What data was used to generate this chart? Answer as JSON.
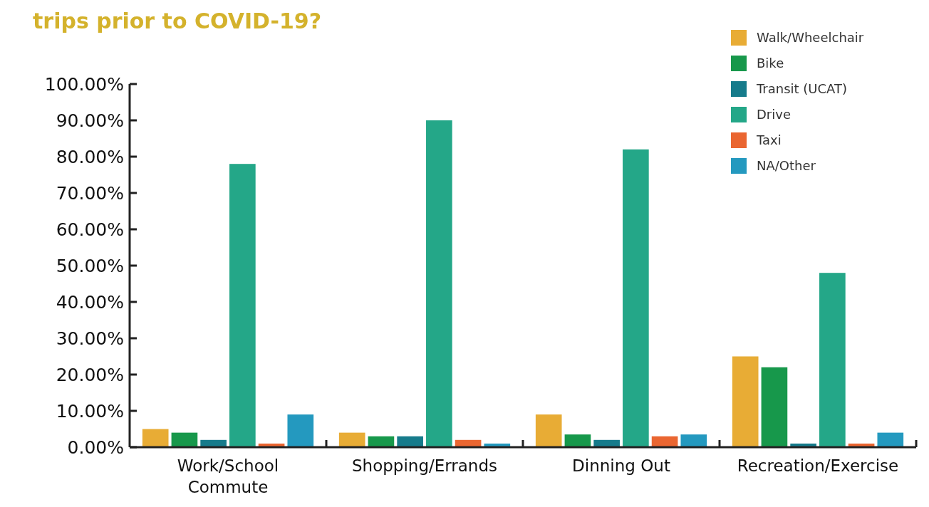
{
  "chart_data": {
    "type": "bar",
    "title": "trips prior to COVID-19?",
    "categories": [
      "Work/School Commute",
      "Shopping/Errands",
      "Dinning Out",
      "Recreation/Exercise"
    ],
    "series": [
      {
        "name": "Walk/Wheelchair",
        "color": "#e8ac35",
        "values": [
          5,
          4,
          9,
          25
        ]
      },
      {
        "name": "Bike",
        "color": "#17984b",
        "values": [
          4,
          3,
          3.5,
          22
        ]
      },
      {
        "name": "Transit (UCAT)",
        "color": "#167b8b",
        "values": [
          2,
          3,
          2,
          1
        ]
      },
      {
        "name": "Drive",
        "color": "#24a788",
        "values": [
          78,
          90,
          82,
          48
        ]
      },
      {
        "name": "Taxi",
        "color": "#ea6631",
        "values": [
          1,
          2,
          3,
          1
        ]
      },
      {
        "name": "NA/Other",
        "color": "#2499bf",
        "values": [
          9,
          1,
          3.5,
          4
        ]
      }
    ],
    "ylim": [
      0,
      100
    ],
    "yticks": [
      {
        "value": 0,
        "label": "0.00%"
      },
      {
        "value": 10,
        "label": "10.00%"
      },
      {
        "value": 20,
        "label": "20.00%"
      },
      {
        "value": 30,
        "label": "30.00%"
      },
      {
        "value": 40,
        "label": "40.00%"
      },
      {
        "value": 50,
        "label": "50.00%"
      },
      {
        "value": 60,
        "label": "60.00%"
      },
      {
        "value": 70,
        "label": "70.00%"
      },
      {
        "value": 80,
        "label": "80.00%"
      },
      {
        "value": 90,
        "label": "90.00%"
      },
      {
        "value": 100,
        "label": "100.00%"
      }
    ],
    "grid": false,
    "legend": "top right"
  }
}
